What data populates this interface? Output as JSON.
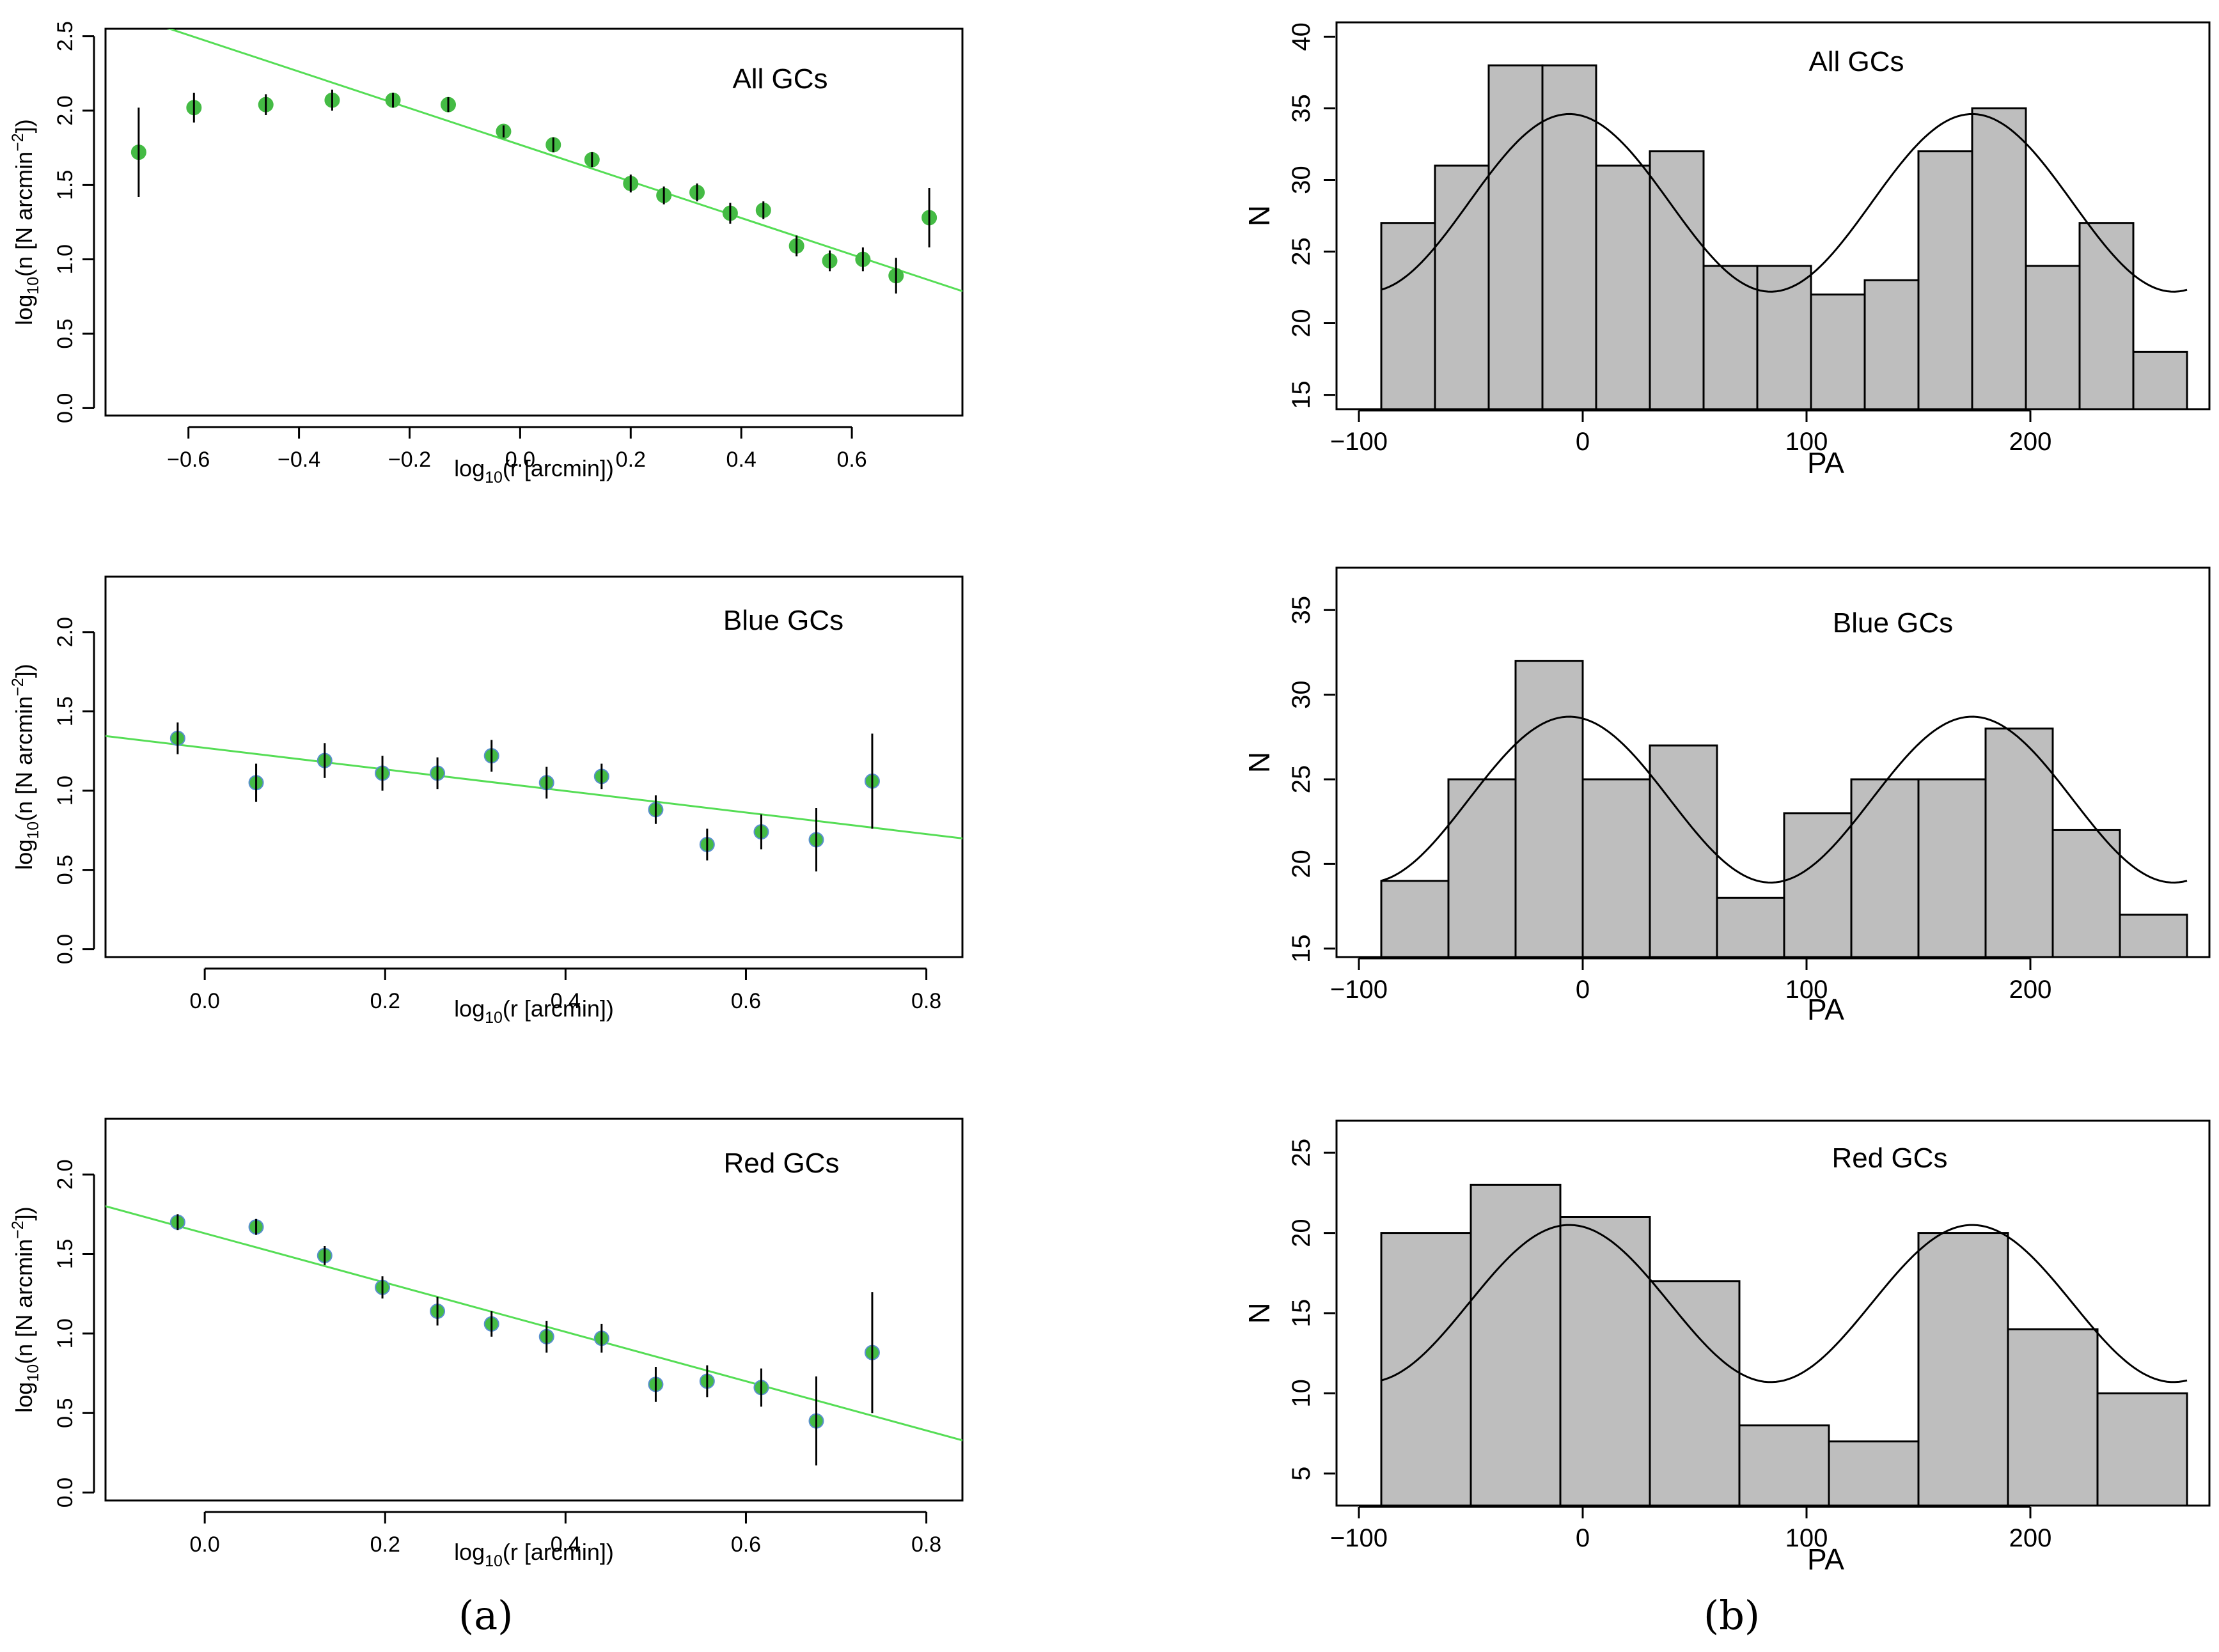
{
  "panel_labels": {
    "a": "(a)",
    "b": "(b)"
  },
  "colors": {
    "fit": "#55dd55",
    "point": "#44bb44",
    "point_edge": "#5a8fd0",
    "bar": "#bebebe",
    "axis": "#000000"
  },
  "chart_data": [
    {
      "type": "scatter",
      "title": "All GCs",
      "xlabel": "log10(r [arcmin])",
      "ylabel": "log10(n [N arcmin-2])",
      "xlim": [
        -0.75,
        0.8
      ],
      "ylim": [
        -0.05,
        2.55
      ],
      "xticks": [
        -0.6,
        -0.4,
        -0.2,
        0.0,
        0.2,
        0.4,
        0.6
      ],
      "xtick_labels": [
        "−0.6",
        "−0.4",
        "−0.2",
        "0.0",
        "0.2",
        "0.4",
        "0.6"
      ],
      "yticks": [
        0.0,
        0.5,
        1.0,
        1.5,
        2.0,
        2.5
      ],
      "ytick_labels": [
        "0.0",
        "0.5",
        "1.0",
        "1.5",
        "2.0",
        "2.5"
      ],
      "x": [
        -0.69,
        -0.59,
        -0.46,
        -0.34,
        -0.23,
        -0.13,
        -0.03,
        0.06,
        0.13,
        0.2,
        0.26,
        0.32,
        0.38,
        0.44,
        0.5,
        0.56,
        0.62,
        0.68,
        0.74
      ],
      "y": [
        1.72,
        2.02,
        2.04,
        2.07,
        2.07,
        2.04,
        1.86,
        1.77,
        1.67,
        1.51,
        1.43,
        1.45,
        1.31,
        1.33,
        1.09,
        0.99,
        1.0,
        0.89,
        1.28
      ],
      "yerr": [
        0.3,
        0.1,
        0.07,
        0.07,
        0.05,
        0.05,
        0.04,
        0.05,
        0.05,
        0.06,
        0.06,
        0.06,
        0.07,
        0.06,
        0.07,
        0.07,
        0.08,
        0.12,
        0.2
      ],
      "fit": {
        "slope": -1.23,
        "intercept": 1.77
      }
    },
    {
      "type": "scatter",
      "title": "Blue GCs",
      "xlabel": "log10(r [arcmin])",
      "ylabel": "log10(n [N arcmin-2])",
      "xlim": [
        -0.11,
        0.84
      ],
      "ylim": [
        -0.05,
        2.35
      ],
      "xticks": [
        0.0,
        0.2,
        0.4,
        0.6,
        0.8
      ],
      "xtick_labels": [
        "0.0",
        "0.2",
        "0.4",
        "0.6",
        "0.8"
      ],
      "yticks": [
        0.0,
        0.5,
        1.0,
        1.5,
        2.0
      ],
      "ytick_labels": [
        "0.0",
        "0.5",
        "1.0",
        "1.5",
        "2.0"
      ],
      "x": [
        -0.03,
        0.057,
        0.133,
        0.197,
        0.258,
        0.318,
        0.379,
        0.44,
        0.5,
        0.557,
        0.617,
        0.678,
        0.74
      ],
      "y": [
        1.33,
        1.05,
        1.19,
        1.11,
        1.11,
        1.22,
        1.05,
        1.09,
        0.88,
        0.66,
        0.74,
        0.69,
        1.06
      ],
      "yerr": [
        0.1,
        0.12,
        0.11,
        0.11,
        0.1,
        0.1,
        0.1,
        0.08,
        0.09,
        0.1,
        0.11,
        0.2,
        0.3
      ],
      "fit": {
        "slope": -0.68,
        "intercept": 1.27
      }
    },
    {
      "type": "scatter",
      "title": "Red GCs",
      "xlabel": "log10(r [arcmin])",
      "ylabel": "log10(n [N arcmin-2])",
      "xlim": [
        -0.11,
        0.84
      ],
      "ylim": [
        -0.05,
        2.35
      ],
      "xticks": [
        0.0,
        0.2,
        0.4,
        0.6,
        0.8
      ],
      "xtick_labels": [
        "0.0",
        "0.2",
        "0.4",
        "0.6",
        "0.8"
      ],
      "yticks": [
        0.0,
        0.5,
        1.0,
        1.5,
        2.0
      ],
      "ytick_labels": [
        "0.0",
        "0.5",
        "1.0",
        "1.5",
        "2.0"
      ],
      "x": [
        -0.03,
        0.057,
        0.133,
        0.197,
        0.258,
        0.318,
        0.379,
        0.44,
        0.5,
        0.557,
        0.617,
        0.678,
        0.74
      ],
      "y": [
        1.7,
        1.67,
        1.49,
        1.29,
        1.14,
        1.06,
        0.98,
        0.97,
        0.68,
        0.7,
        0.66,
        0.45,
        0.88
      ],
      "yerr": [
        0.05,
        0.05,
        0.06,
        0.07,
        0.09,
        0.08,
        0.1,
        0.09,
        0.11,
        0.1,
        0.12,
        0.28,
        0.38
      ],
      "fit": {
        "slope": -1.55,
        "intercept": 1.63
      }
    },
    {
      "type": "bar",
      "title": "All GCs",
      "xlabel": "PA",
      "ylabel": "N",
      "xlim": [
        -110,
        280
      ],
      "ylim": [
        14,
        41
      ],
      "xticks": [
        -100,
        0,
        100,
        200
      ],
      "xtick_labels": [
        "−100",
        "0",
        "100",
        "200"
      ],
      "yticks": [
        15,
        20,
        25,
        30,
        35,
        40
      ],
      "ytick_labels": [
        "15",
        "20",
        "25",
        "30",
        "35",
        "40"
      ],
      "bin_edges": [
        -90,
        -66,
        -42,
        -18,
        6,
        30,
        54,
        78,
        102,
        126,
        150,
        174,
        198,
        222,
        246,
        270
      ],
      "values": [
        27,
        31,
        38,
        38,
        31,
        32,
        24,
        24,
        22,
        23,
        32,
        35,
        24,
        27,
        18
      ],
      "curve": {
        "mean": 28.4,
        "amplitude": 6.2,
        "peak": -6
      }
    },
    {
      "type": "bar",
      "title": "Blue GCs",
      "xlabel": "PA",
      "ylabel": "N",
      "xlim": [
        -110,
        280
      ],
      "ylim": [
        14.5,
        37.5
      ],
      "xticks": [
        -100,
        0,
        100,
        200
      ],
      "xtick_labels": [
        "−100",
        "0",
        "100",
        "200"
      ],
      "yticks": [
        15,
        20,
        25,
        30,
        35
      ],
      "ytick_labels": [
        "15",
        "20",
        "25",
        "30",
        "35"
      ],
      "bin_edges": [
        -90,
        -60,
        -30,
        0,
        30,
        60,
        90,
        120,
        150,
        180,
        210,
        240,
        270
      ],
      "values": [
        19,
        25,
        32,
        25,
        27,
        18,
        23,
        25,
        25,
        28,
        22,
        17
      ],
      "curve": {
        "mean": 23.8,
        "amplitude": 4.9,
        "peak": -6
      }
    },
    {
      "type": "bar",
      "title": "Red GCs",
      "xlabel": "PA",
      "ylabel": "N",
      "xlim": [
        -110,
        280
      ],
      "ylim": [
        3,
        27
      ],
      "xticks": [
        -100,
        0,
        100,
        200
      ],
      "xtick_labels": [
        "−100",
        "0",
        "100",
        "200"
      ],
      "yticks": [
        5,
        10,
        15,
        20,
        25
      ],
      "ytick_labels": [
        "5",
        "10",
        "15",
        "20",
        "25"
      ],
      "bin_edges": [
        -90,
        -50,
        -10,
        30,
        70,
        110,
        150,
        190,
        230,
        270
      ],
      "values": [
        20,
        23,
        21,
        17,
        8,
        7,
        20,
        14,
        10
      ],
      "curve": {
        "mean": 15.6,
        "amplitude": 4.9,
        "peak": -6
      }
    }
  ]
}
